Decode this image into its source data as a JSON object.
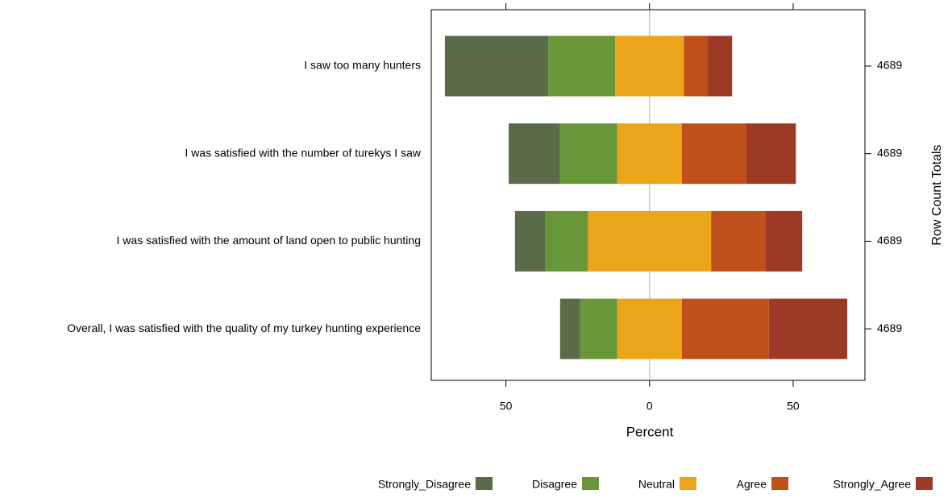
{
  "chart_data": {
    "type": "diverging-bar",
    "categories": [
      "I saw too many hunters",
      "I was satisfied with the number of turekys I saw",
      "I was satisfied with the amount of land open to public hunting",
      "Overall, I was satisfied with the quality of my turkey hunting experience"
    ],
    "series": [
      {
        "name": "Strongly_Disagree",
        "color": "#5a6b4a",
        "values": [
          36.0,
          17.8,
          10.6,
          7.0
        ]
      },
      {
        "name": "Disagree",
        "color": "#6a963a",
        "values": [
          23.3,
          20.0,
          14.8,
          12.9
        ]
      },
      {
        "name": "Neutral",
        "color": "#eba51a",
        "values": [
          23.9,
          22.5,
          42.9,
          22.5
        ]
      },
      {
        "name": "Agree",
        "color": "#bf5019",
        "values": [
          8.1,
          22.4,
          18.8,
          30.3
        ]
      },
      {
        "name": "Strongly_Agree",
        "color": "#9c3a25",
        "values": [
          8.7,
          17.3,
          12.9,
          27.3
        ]
      }
    ],
    "xlabel": "Percent",
    "xlim": [
      -76,
      75
    ],
    "xticks": [
      {
        "value": -50,
        "label": "50"
      },
      0,
      50
    ],
    "y2label": "Row Count Totals",
    "row_totals": [
      4689,
      4689,
      4689,
      4689
    ],
    "legend": "bottom"
  }
}
